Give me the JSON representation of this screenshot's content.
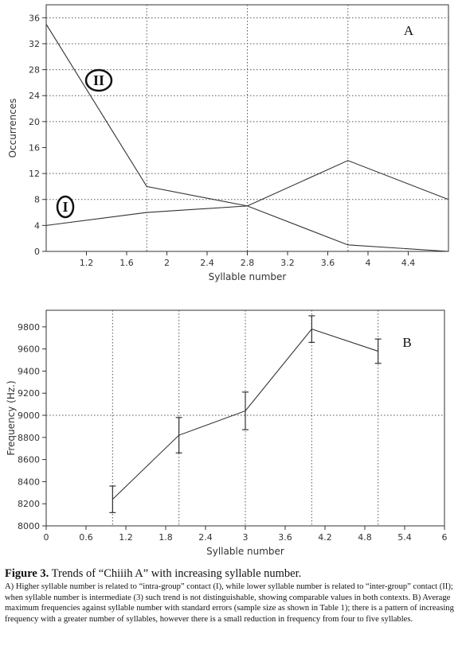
{
  "chart_data": [
    {
      "type": "line",
      "panel_label": "A",
      "xlabel": "Syllable number",
      "ylabel": "Occurrences",
      "xlim": [
        1,
        5
      ],
      "ylim": [
        0,
        38
      ],
      "x_ticks": [
        1.2,
        1.6,
        2,
        2.4,
        2.8,
        3.2,
        3.6,
        4,
        4.4
      ],
      "y_ticks": [
        0,
        4,
        8,
        12,
        16,
        20,
        24,
        28,
        32,
        36
      ],
      "x_ticks_ordinal": true,
      "grid_x": [
        2,
        3,
        4
      ],
      "grid_y": [
        8,
        12,
        20,
        24,
        28,
        32,
        36
      ],
      "x": [
        1,
        2,
        3,
        4,
        5
      ],
      "series": [
        {
          "label": "I",
          "values": [
            4,
            6,
            7,
            14,
            8
          ]
        },
        {
          "label": "II",
          "values": [
            35,
            10,
            7,
            1,
            0
          ]
        }
      ]
    },
    {
      "type": "line",
      "panel_label": "B",
      "xlabel": "Syllable number",
      "ylabel": "Frequency (Hz.)",
      "xlim": [
        0,
        6
      ],
      "ylim": [
        8000,
        9950
      ],
      "x_ticks": [
        0,
        0.6,
        1.2,
        1.8,
        2.4,
        3,
        3.6,
        4.2,
        4.8,
        5.4,
        6
      ],
      "y_ticks": [
        8000,
        8200,
        8400,
        8600,
        8800,
        9000,
        9200,
        9400,
        9600,
        9800
      ],
      "grid_x": [
        1,
        2,
        3,
        4,
        5
      ],
      "grid_y": [
        9000
      ],
      "x": [
        1,
        2,
        3,
        4,
        5
      ],
      "series": [
        {
          "values": [
            8240,
            8820,
            9040,
            9780,
            9580
          ],
          "error": [
            120,
            160,
            170,
            120,
            110
          ]
        }
      ]
    }
  ],
  "caption": {
    "figure": "Figure 3.",
    "title": " Trends of “Chiiih A” with increasing syllable number.",
    "body": "A) Higher syllable number is related to “intra-group” contact (I), while lower syllable number is related to “inter-group” contact (II); when syllable number is intermediate (3) such trend is not distinguishable, showing comparable values in both contexts. B) Average maximum frequencies against syllable number with standard errors (sample size as shown in Table 1); there is a pattern of increasing frequency with a greater number of syllables, however there is a small reduction in frequency from four to five syllables."
  }
}
